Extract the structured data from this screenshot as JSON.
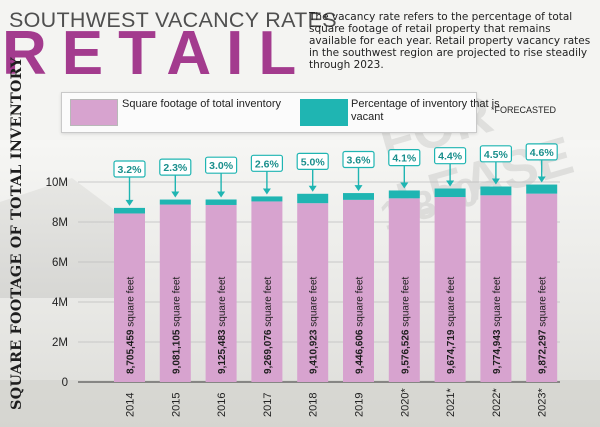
{
  "header": {
    "subtitle": "SOUTHWEST VACANCY RATES",
    "title": "RETAIL",
    "intro": "The vacancy rate refers to the percentage of total square footage of retail property that remains available for each year. Retail property vacancy rates in the southwest region are projected to rise steadily through 2023."
  },
  "legend": {
    "total_label": "Square footage of total inventory",
    "vacant_label": "Percentage of inventory that is vacant",
    "forecast_note": "*FORECASTED"
  },
  "colors": {
    "title": "#a33b8e",
    "total_bar": "#d7a3cf",
    "vacant_bar": "#1fb5b2",
    "callout": "#1fb5b2"
  },
  "chart_data": {
    "type": "bar",
    "stacked": true,
    "categories": [
      "2014",
      "2015",
      "2016",
      "2017",
      "2018",
      "2019",
      "2020*",
      "2021*",
      "2022*",
      "2023*"
    ],
    "series": [
      {
        "name": "Square footage of total inventory",
        "values": [
          8705459,
          9081105,
          9125483,
          9269076,
          9410923,
          9446606,
          9576526,
          9674719,
          9774943,
          9872297
        ],
        "value_labels": [
          "8,705,459 square feet",
          "9,081,105 square feet",
          "9,125,483 square feet",
          "9,269,076 square feet",
          "9,410,923 square feet",
          "9,446,606 square feet",
          "9,576,526 square feet",
          "9,674,719 square feet",
          "9,774,943 square feet",
          "9,872,297 square feet"
        ]
      },
      {
        "name": "Percentage of inventory that is vacant",
        "values": [
          3.2,
          2.3,
          3.0,
          2.6,
          5.0,
          3.6,
          4.1,
          4.4,
          4.5,
          4.6
        ],
        "value_labels": [
          "3.2%",
          "2.3%",
          "3.0%",
          "2.6%",
          "5.0%",
          "3.6%",
          "4.1%",
          "4.4%",
          "4.5%",
          "4.6%"
        ]
      }
    ],
    "ylabel": "SQUARE FOOTAGE OF TOTAL INVENTORY",
    "xlabel": "",
    "ylim": [
      0,
      10000000
    ],
    "yticks": [
      0,
      2000000,
      4000000,
      6000000,
      8000000,
      10000000
    ],
    "ytick_labels": [
      "0",
      "2M",
      "4M",
      "6M",
      "8M",
      "10M"
    ],
    "grid": true,
    "legend_position": "top"
  }
}
